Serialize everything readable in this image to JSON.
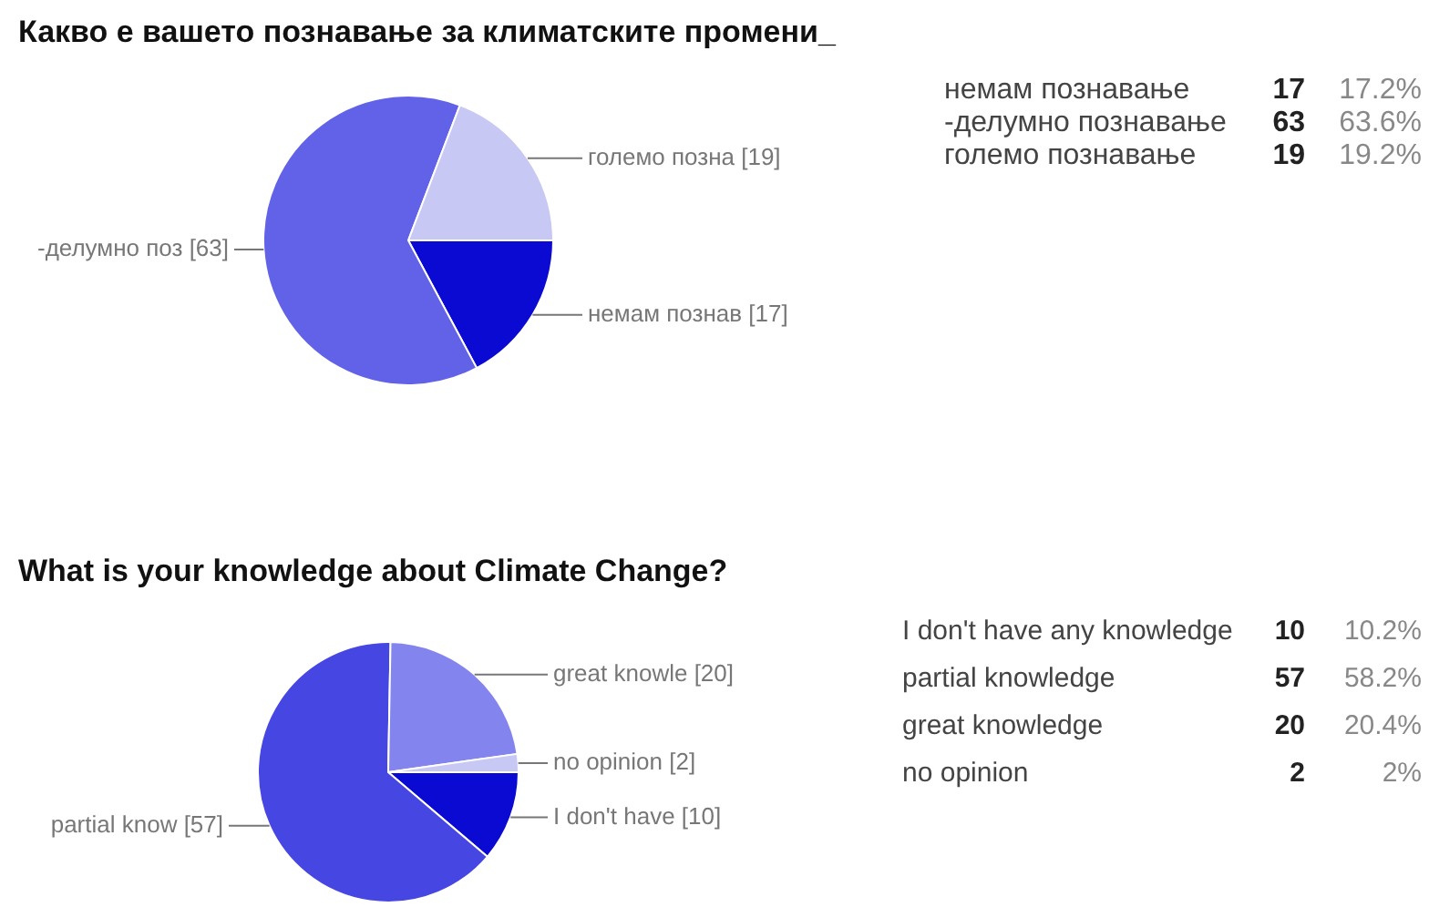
{
  "chart_data": [
    {
      "type": "pie",
      "title": "Какво е вашето познавање за климатските промени_",
      "categories": [
        "немам познав",
        "-делумно поз",
        "големо позна"
      ],
      "values": [
        17,
        63,
        19
      ],
      "colors": [
        "#0a0ad2",
        "#6262e8",
        "#c8c8f4"
      ],
      "value_labels": [
        "[17]",
        "[63]",
        "[19]"
      ]
    },
    {
      "type": "other",
      "categories": [
        "немам познавање",
        "-делумно познавање",
        "големо познавање"
      ],
      "values": [
        17,
        63,
        19
      ],
      "data_labels": true,
      "annotations": [
        "17.2%",
        "63.6%",
        "19.2%"
      ]
    },
    {
      "type": "pie",
      "title": "What is your knowledge about Climate Change?",
      "categories": [
        "I don't have",
        "partial know",
        "great knowle",
        "no opinion"
      ],
      "values": [
        10,
        57,
        20,
        2
      ],
      "colors": [
        "#0a0ad2",
        "#4646e2",
        "#8484ee",
        "#c8c8f4"
      ],
      "value_labels": [
        "[10]",
        "[57]",
        "[20]",
        "[2]"
      ]
    },
    {
      "type": "other",
      "categories": [
        "I don't have any knowledge",
        "partial knowledge",
        "great knowledge",
        "no opinion"
      ],
      "values": [
        10,
        57,
        20,
        2
      ],
      "data_labels": true,
      "annotations": [
        "10.2%",
        "58.2%",
        "20.4%",
        "2%"
      ]
    }
  ]
}
